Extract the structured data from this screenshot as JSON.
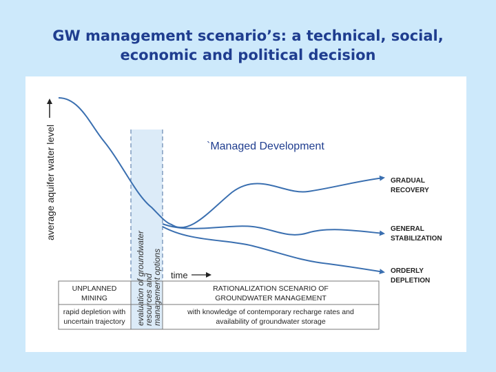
{
  "slide": {
    "title_line1": "GW management scenario’s: a technical, social,",
    "title_line2": "economic  and political decision"
  },
  "diagram": {
    "y_axis_label": "average aquifer water level",
    "time_label": "time",
    "annotation": "`Managed Development",
    "evaluation_band": {
      "line1": "evaluation of groundwater",
      "line2": "resources and",
      "line3": "management options"
    },
    "curves": [
      {
        "line1": "GRADUAL",
        "line2": "RECOVERY"
      },
      {
        "line1": "GENERAL",
        "line2": "STABILIZATION"
      },
      {
        "line1": "ORDERLY",
        "line2": "DEPLETION"
      }
    ],
    "table": {
      "left_header_1": "UNPLANNED",
      "left_header_2": "MINING",
      "left_desc_1": "rapid depletion with",
      "left_desc_2": "uncertain trajectory",
      "right_header_1": "RATIONALIZATION SCENARIO OF",
      "right_header_2": "GROUNDWATER MANAGEMENT",
      "right_desc_1": "with knowledge of contemporary recharge rates and",
      "right_desc_2": "availability of groundwater storage"
    },
    "colors": {
      "curve": "#3a6fb0",
      "band": "#dcebf8",
      "title": "#1f3d8f",
      "annotation": "#1f3d8f"
    }
  }
}
